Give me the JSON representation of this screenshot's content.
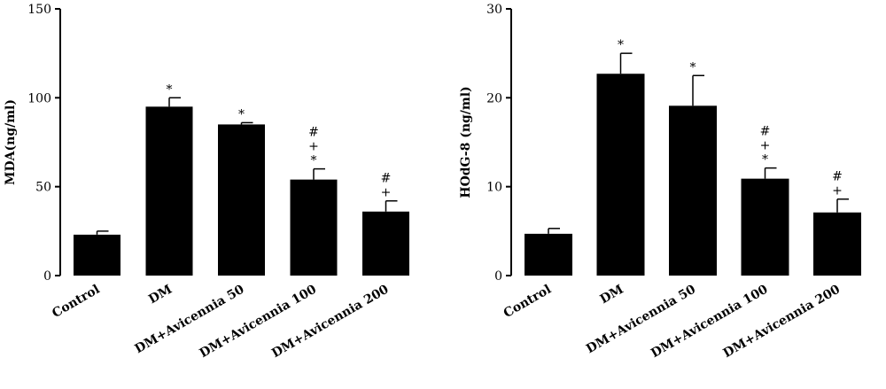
{
  "chart_data": [
    {
      "type": "bar",
      "title": "",
      "xlabel": "",
      "ylabel": "MDA(ng/ml)",
      "ylim": [
        0,
        150
      ],
      "yticks": [
        0,
        50,
        100,
        150
      ],
      "grid": false,
      "categories": [
        "Control",
        "DM",
        "DM+Avicennia 50",
        "DM+Avicennia 100",
        "DM+Avicennia 200"
      ],
      "values": [
        23,
        95,
        85,
        54,
        36
      ],
      "errors": [
        2,
        5,
        1,
        6,
        6
      ],
      "annotations": [
        [],
        [
          "*"
        ],
        [
          "*"
        ],
        [
          "#",
          "+",
          "*"
        ],
        [
          "#",
          "+"
        ]
      ]
    },
    {
      "type": "bar",
      "title": "",
      "xlabel": "",
      "ylabel": "HOdG-8 (ng/ml)",
      "ylim": [
        0,
        30
      ],
      "yticks": [
        0,
        10,
        20,
        30
      ],
      "grid": false,
      "categories": [
        "Control",
        "DM",
        "DM+Avicennia 50",
        "DM+Avicennia 100",
        "DM+Avicennia 200"
      ],
      "values": [
        4.7,
        22.7,
        19.1,
        10.9,
        7.1
      ],
      "errors": [
        0.6,
        2.3,
        3.4,
        1.2,
        1.5
      ],
      "annotations": [
        [],
        [
          "*"
        ],
        [
          "*"
        ],
        [
          "#",
          "+",
          "*"
        ],
        [
          "#",
          "+"
        ]
      ]
    }
  ],
  "colors": {
    "bar": "#000000",
    "axis": "#000000",
    "background": "#ffffff"
  }
}
